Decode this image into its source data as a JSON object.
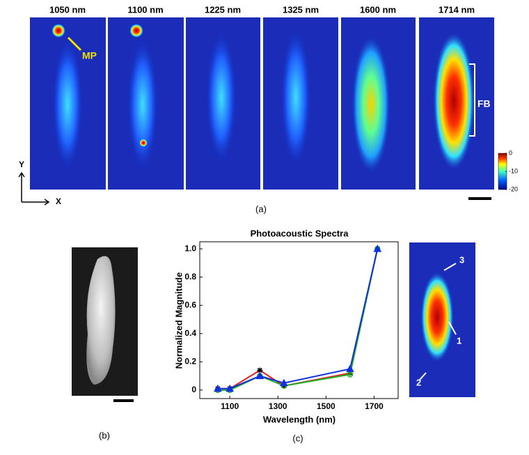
{
  "panel_a": {
    "wavelengths": [
      "1050 nm",
      "1100 nm",
      "1225 nm",
      "1325 nm",
      "1600 nm",
      "1714 nm"
    ],
    "mp_label": "MP",
    "fb_label": "FB",
    "axis_y": "Y",
    "axis_x": "X",
    "colorbar": {
      "lim": [
        -20,
        0
      ],
      "ticks": [
        0,
        -10,
        -20
      ]
    },
    "caption": "(a)"
  },
  "panel_b": {
    "caption": "(b)"
  },
  "chart_data": {
    "type": "line",
    "title": "Photoacoustic Spectra",
    "x_label": "Wavelength (nm)",
    "y_label": "Normalized Magnitude",
    "x": [
      1050,
      1100,
      1225,
      1325,
      1600,
      1714
    ],
    "series": [
      {
        "color": "#e02020",
        "marker": "asterisk",
        "marker_color": "#000000",
        "values": [
          0.01,
          0.01,
          0.14,
          0.03,
          0.12,
          1.0
        ]
      },
      {
        "color": "#20b020",
        "marker": "circle",
        "marker_color": "#20b020",
        "values": [
          0.0,
          0.0,
          0.1,
          0.03,
          0.11,
          1.0
        ]
      },
      {
        "color": "#1030e0",
        "marker": "triangle",
        "marker_color": "#1030e0",
        "values": [
          0.01,
          0.01,
          0.1,
          0.05,
          0.15,
          1.0
        ]
      }
    ],
    "xlim": [
      975,
      1800
    ],
    "ylim": [
      -0.06,
      1.05
    ],
    "xticks": [
      1100,
      1300,
      1500,
      1700
    ],
    "yticks": [
      0,
      0.2,
      0.4,
      0.6,
      0.8,
      {
        "value": 1,
        "label": "1.0"
      }
    ]
  },
  "panel_c": {
    "caption": "(c)",
    "points": [
      "1",
      "2",
      "3"
    ]
  }
}
